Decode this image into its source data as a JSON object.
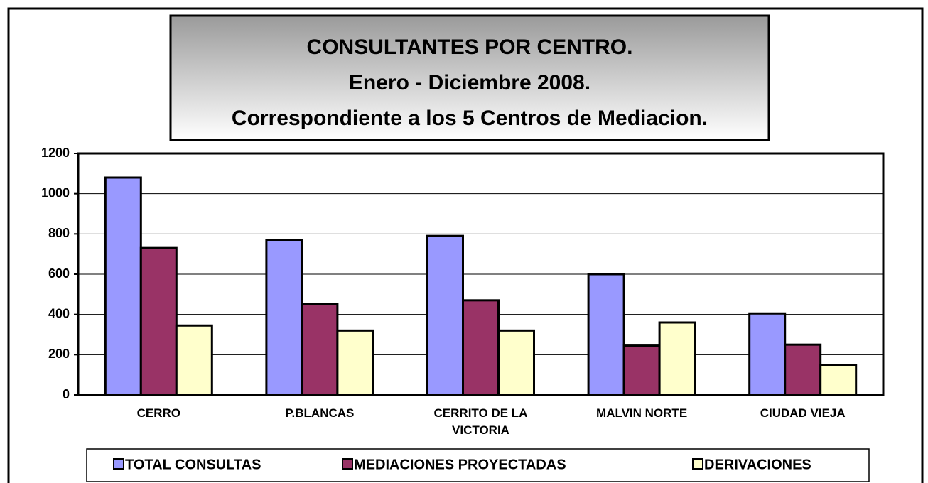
{
  "chart_data": {
    "type": "bar",
    "title": "CONSULTANTES POR CENTRO.",
    "subtitle": [
      "Enero - Diciembre 2008.",
      "Correspondiente a los 5 Centros de Mediacion."
    ],
    "categories": [
      "CERRO",
      "P.BLANCAS",
      "CERRITO DE LA VICTORIA",
      "MALVIN NORTE",
      "CIUDAD VIEJA"
    ],
    "series": [
      {
        "name": "TOTAL CONSULTAS",
        "color": "#9999ff",
        "values": [
          1080,
          770,
          790,
          600,
          405
        ]
      },
      {
        "name": "MEDIACIONES PROYECTADAS",
        "color": "#993366",
        "values": [
          730,
          450,
          470,
          245,
          250
        ]
      },
      {
        "name": "DERIVACIONES",
        "color": "#ffffcc",
        "values": [
          345,
          320,
          320,
          360,
          150
        ]
      }
    ],
    "ylim": [
      0,
      1200
    ],
    "yticks": [
      0,
      200,
      400,
      600,
      800,
      1000,
      1200
    ],
    "grid": true,
    "legend": "bottom"
  }
}
